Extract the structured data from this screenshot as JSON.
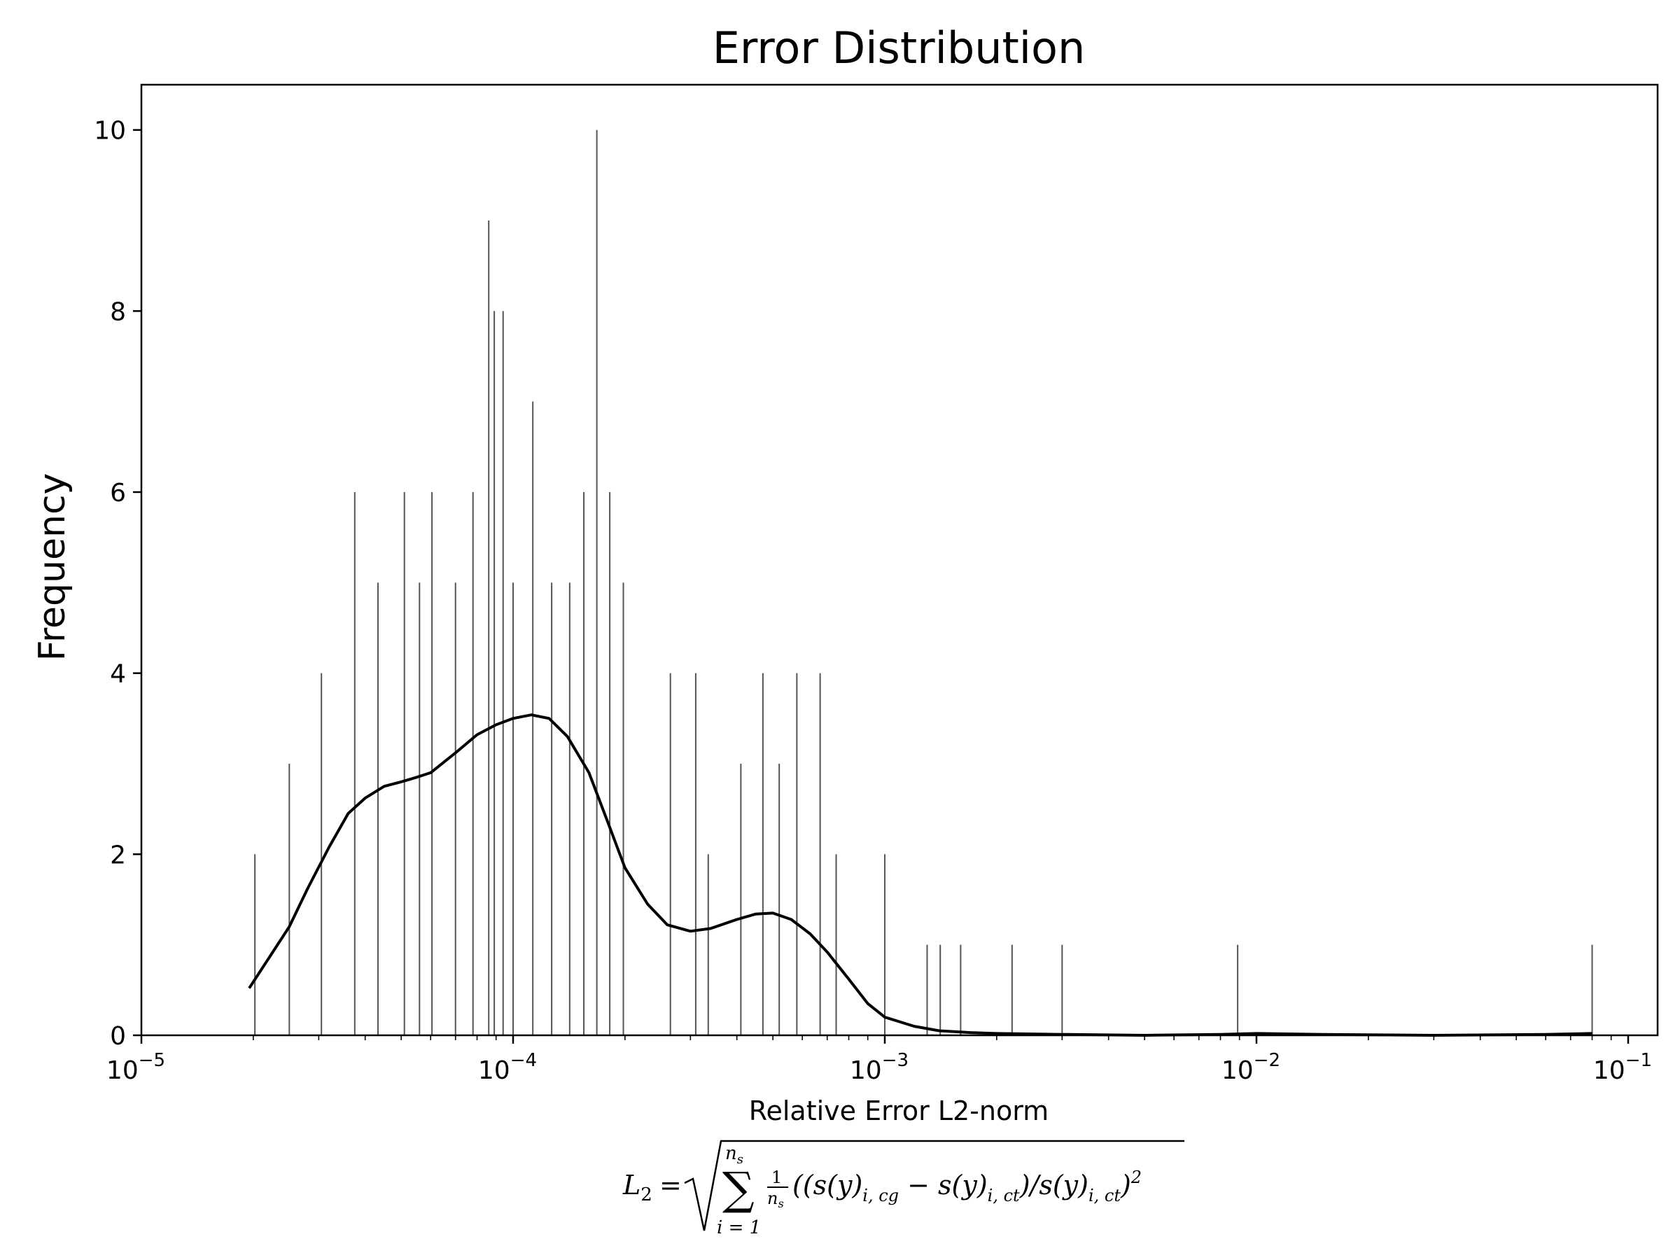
{
  "chart_data": {
    "type": "histogram",
    "title": "Error Distribution",
    "xlabel": "Relative Error L2-norm",
    "ylabel": "Frequency",
    "x_scale": "log",
    "xlim": [
      1e-05,
      0.12
    ],
    "ylim": [
      0,
      10.5
    ],
    "x_ticks": [
      {
        "value": 1e-05,
        "base": "10",
        "exp": "−5"
      },
      {
        "value": 0.0001,
        "base": "10",
        "exp": "−4"
      },
      {
        "value": 0.001,
        "base": "10",
        "exp": "−3"
      },
      {
        "value": 0.01,
        "base": "10",
        "exp": "−2"
      },
      {
        "value": 0.1,
        "base": "10",
        "exp": "−1"
      }
    ],
    "y_ticks": [
      0,
      2,
      4,
      6,
      8,
      10
    ],
    "grid": false,
    "colors": {
      "bars": "#555555",
      "kde": "#000000"
    },
    "peak_bins": [
      {
        "x": 2.02e-05,
        "count": 2
      },
      {
        "x": 2.5e-05,
        "count": 3
      },
      {
        "x": 3.05e-05,
        "count": 4
      },
      {
        "x": 3.75e-05,
        "count": 6
      },
      {
        "x": 4.33e-05,
        "count": 5
      },
      {
        "x": 5.1e-05,
        "count": 6
      },
      {
        "x": 5.6e-05,
        "count": 5
      },
      {
        "x": 6.05e-05,
        "count": 6
      },
      {
        "x": 7e-05,
        "count": 5
      },
      {
        "x": 7.8e-05,
        "count": 6
      },
      {
        "x": 8.6e-05,
        "count": 9
      },
      {
        "x": 8.9e-05,
        "count": 8
      },
      {
        "x": 9.4e-05,
        "count": 8
      },
      {
        "x": 0.0001,
        "count": 5
      },
      {
        "x": 0.000113,
        "count": 7
      },
      {
        "x": 0.000127,
        "count": 5
      },
      {
        "x": 0.000142,
        "count": 5
      },
      {
        "x": 0.000155,
        "count": 6
      },
      {
        "x": 0.000168,
        "count": 10
      },
      {
        "x": 0.000182,
        "count": 6
      },
      {
        "x": 0.000198,
        "count": 5
      },
      {
        "x": 0.000265,
        "count": 4
      },
      {
        "x": 0.00031,
        "count": 4
      },
      {
        "x": 0.000335,
        "count": 2
      },
      {
        "x": 0.00041,
        "count": 3
      },
      {
        "x": 0.00047,
        "count": 4
      },
      {
        "x": 0.00052,
        "count": 3
      },
      {
        "x": 0.00058,
        "count": 4
      },
      {
        "x": 0.00067,
        "count": 4
      },
      {
        "x": 0.00074,
        "count": 2
      },
      {
        "x": 0.001,
        "count": 2
      },
      {
        "x": 0.0013,
        "count": 1
      },
      {
        "x": 0.00141,
        "count": 1
      },
      {
        "x": 0.0016,
        "count": 1
      },
      {
        "x": 0.0022,
        "count": 1
      },
      {
        "x": 0.003,
        "count": 1
      },
      {
        "x": 0.0089,
        "count": 1
      },
      {
        "x": 0.08,
        "count": 1
      }
    ],
    "density_curve": {
      "x": [
        1.95e-05,
        2.2e-05,
        2.5e-05,
        2.8e-05,
        3.2e-05,
        3.6e-05,
        4e-05,
        4.5e-05,
        5e-05,
        5.5e-05,
        6e-05,
        7e-05,
        8e-05,
        9e-05,
        0.0001,
        0.000112,
        0.000125,
        0.00014,
        0.00016,
        0.00018,
        0.0002,
        0.00023,
        0.00026,
        0.0003,
        0.00034,
        0.0004,
        0.00045,
        0.0005,
        0.00056,
        0.00063,
        0.0007,
        0.0008,
        0.0009,
        0.001,
        0.0012,
        0.0014,
        0.0017,
        0.002,
        0.003,
        0.005,
        0.008,
        0.01,
        0.015,
        0.03,
        0.06,
        0.08
      ],
      "y": [
        0.52,
        0.85,
        1.2,
        1.62,
        2.08,
        2.45,
        2.62,
        2.75,
        2.8,
        2.85,
        2.9,
        3.12,
        3.32,
        3.43,
        3.5,
        3.54,
        3.5,
        3.3,
        2.9,
        2.35,
        1.85,
        1.45,
        1.22,
        1.15,
        1.18,
        1.28,
        1.34,
        1.35,
        1.28,
        1.12,
        0.92,
        0.62,
        0.35,
        0.2,
        0.1,
        0.05,
        0.03,
        0.02,
        0.01,
        0.0,
        0.01,
        0.02,
        0.01,
        0.0,
        0.01,
        0.02
      ]
    }
  },
  "formula": {
    "lhs": "L",
    "lhs_sub": "2",
    "eq": "=",
    "sum_upper": "n",
    "sum_upper_sub": "s",
    "sum_lower": "i = 1",
    "sigma": "∑",
    "frac_num": "1",
    "frac_den": "n",
    "frac_den_sub": "s",
    "body_open": "((s(y)",
    "sub_cg": "i, cg",
    "minus": " − s(y)",
    "sub_ct1": "i, ct",
    "mid": ")/s(y)",
    "sub_ct2": "i, ct",
    "body_close": ")",
    "power": "2"
  }
}
